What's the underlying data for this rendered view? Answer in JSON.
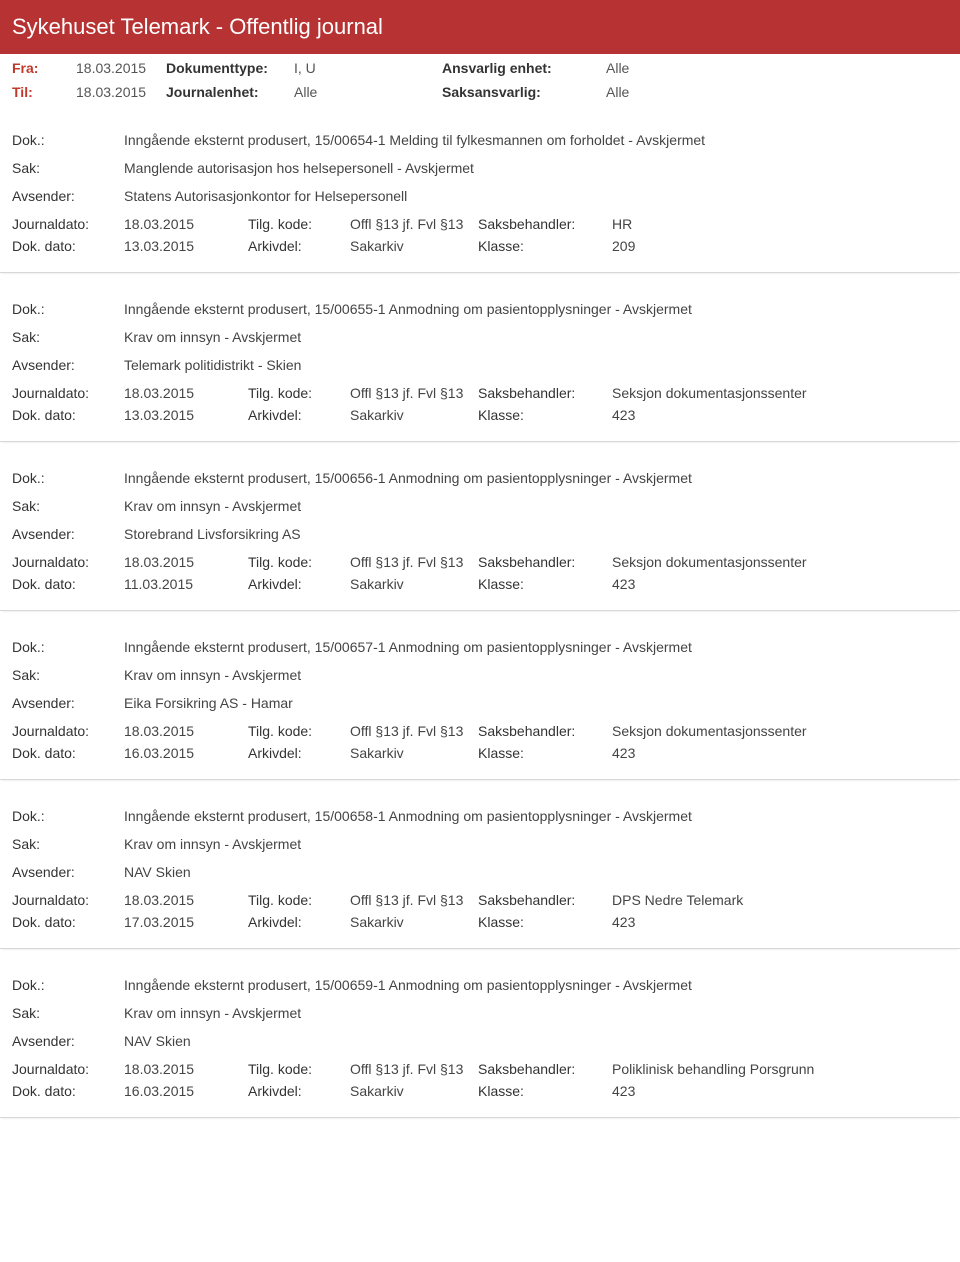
{
  "header": {
    "title": "Sykehuset Telemark - Offentlig journal"
  },
  "meta": {
    "from_label": "Fra:",
    "to_label": "Til:",
    "date": "18.03.2015",
    "doctype_label": "Dokumenttype:",
    "doctype_value": "I, U",
    "resp_unit_label": "Ansvarlig enhet:",
    "resp_unit_value": "Alle",
    "journal_unit_label": "Journalenhet:",
    "journal_unit_value": "Alle",
    "case_resp_label": "Saksansvarlig:",
    "case_resp_value": "Alle"
  },
  "labels": {
    "dok": "Dok.:",
    "sak": "Sak:",
    "avsender": "Avsender:",
    "journaldato": "Journaldato:",
    "tilgkode": "Tilg. kode:",
    "saksbehandler": "Saksbehandler:",
    "dokdato": "Dok. dato:",
    "arkivdel": "Arkivdel:",
    "klasse": "Klasse:"
  },
  "common": {
    "journaldato": "18.03.2015",
    "tilgkode": "Offl §13 jf. Fvl §13",
    "arkivdel": "Sakarkiv"
  },
  "entries": [
    {
      "dok": "Inngående eksternt produsert, 15/00654-1 Melding til fylkesmannen om forholdet - Avskjermet",
      "sak": "Manglende autorisasjon hos helsepersonell - Avskjermet",
      "avsender": "Statens Autorisasjonkontor for Helsepersonell",
      "saksbehandler": "HR",
      "dokdato": "13.03.2015",
      "klasse": "209"
    },
    {
      "dok": "Inngående eksternt produsert, 15/00655-1 Anmodning om pasientopplysninger - Avskjermet",
      "sak": "Krav om innsyn - Avskjermet",
      "avsender": "Telemark politidistrikt - Skien",
      "saksbehandler": "Seksjon dokumentasjonssenter",
      "dokdato": "13.03.2015",
      "klasse": "423"
    },
    {
      "dok": "Inngående eksternt produsert, 15/00656-1 Anmodning om pasientopplysninger - Avskjermet",
      "sak": "Krav om innsyn - Avskjermet",
      "avsender": "Storebrand Livsforsikring AS",
      "saksbehandler": "Seksjon dokumentasjonssenter",
      "dokdato": "11.03.2015",
      "klasse": "423"
    },
    {
      "dok": "Inngående eksternt produsert, 15/00657-1 Anmodning om pasientopplysninger - Avskjermet",
      "sak": "Krav om innsyn - Avskjermet",
      "avsender": "Eika Forsikring AS - Hamar",
      "saksbehandler": "Seksjon dokumentasjonssenter",
      "dokdato": "16.03.2015",
      "klasse": "423"
    },
    {
      "dok": "Inngående eksternt produsert, 15/00658-1 Anmodning om pasientopplysninger - Avskjermet",
      "sak": "Krav om innsyn - Avskjermet",
      "avsender": "NAV Skien",
      "saksbehandler": "DPS Nedre Telemark",
      "dokdato": "17.03.2015",
      "klasse": "423"
    },
    {
      "dok": "Inngående eksternt produsert, 15/00659-1 Anmodning om pasientopplysninger - Avskjermet",
      "sak": "Krav om innsyn - Avskjermet",
      "avsender": "NAV Skien",
      "saksbehandler": "Poliklinisk behandling Porsgrunn",
      "dokdato": "16.03.2015",
      "klasse": "423"
    }
  ]
}
